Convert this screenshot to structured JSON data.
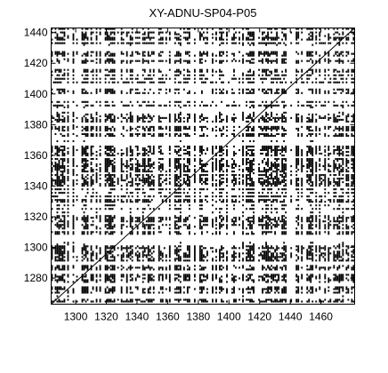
{
  "chart_data": {
    "type": "heatmap",
    "title": "XY-ADNU-SP04-P05",
    "xlabel": "",
    "ylabel": "",
    "xlim": [
      1284,
      1482
    ],
    "ylim": [
      1263,
      1443
    ],
    "x_ticks": [
      1300,
      1320,
      1340,
      1360,
      1380,
      1400,
      1420,
      1440,
      1460
    ],
    "y_ticks": [
      1280,
      1300,
      1320,
      1340,
      1360,
      1380,
      1400,
      1420,
      1440
    ],
    "grid": false,
    "colors": {
      "marks": "#000000",
      "background": "#ffffff",
      "axes": "#000000"
    }
  }
}
